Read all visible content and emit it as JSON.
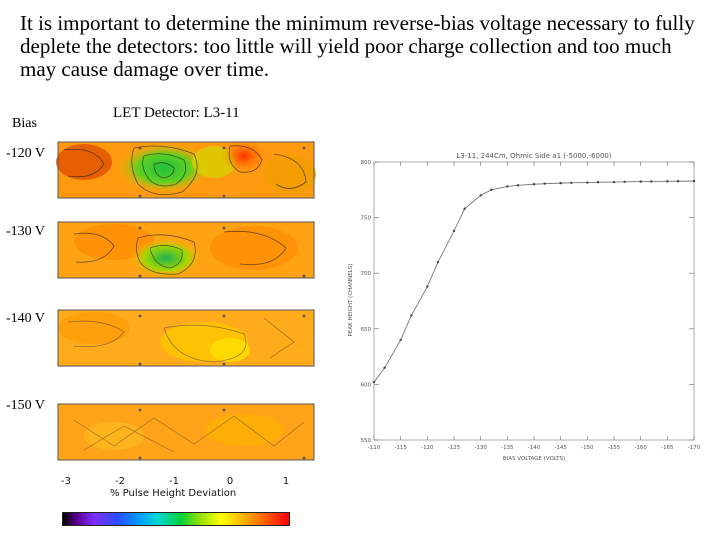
{
  "intro_text": "It is important to determine the minimum reverse-bias voltage necessary to fully deplete the detectors: too little will yield poor charge collection and too much may cause damage over time.",
  "bias_header": "Bias",
  "detector_title": "LET Detector: L3-11",
  "maps": [
    {
      "bias": "-120 V"
    },
    {
      "bias": "-130 V"
    },
    {
      "bias": "-140 V"
    },
    {
      "bias": "-150 V"
    }
  ],
  "colorbar": {
    "label": "% Pulse Height Deviation",
    "ticks": [
      "-3",
      "-2",
      "-1",
      "0",
      "1"
    ]
  },
  "chart_data": {
    "type": "line",
    "title": "L3-11, 244Cm, Ohmic Side a1 (-5000,-6000)",
    "xlabel": "BIAS VOLTAGE (VOLTS)",
    "ylabel": "PEAK HEIGHT (CHANNELS)",
    "xlim": [
      -110,
      -170
    ],
    "ylim": [
      550,
      800
    ],
    "xticks": [
      "-110",
      "-115",
      "-120",
      "-125",
      "-130",
      "-135",
      "-140",
      "-145",
      "-150",
      "-155",
      "-160",
      "-165",
      "-170"
    ],
    "yticks": [
      "550",
      "600",
      "650",
      "700",
      "750",
      "800"
    ],
    "x": [
      -110,
      -112,
      -115,
      -117,
      -120,
      -122,
      -125,
      -127,
      -130,
      -132,
      -135,
      -137,
      -140,
      -142,
      -145,
      -147,
      -150,
      -152,
      -155,
      -157,
      -160,
      -162,
      -165,
      -167,
      -170
    ],
    "values": [
      602,
      615,
      640,
      662,
      688,
      710,
      738,
      758,
      770,
      775,
      778,
      779,
      780,
      780.5,
      781,
      781.3,
      781.5,
      781.8,
      782,
      782.2,
      782.4,
      782.5,
      782.6,
      782.7,
      782.8
    ]
  }
}
